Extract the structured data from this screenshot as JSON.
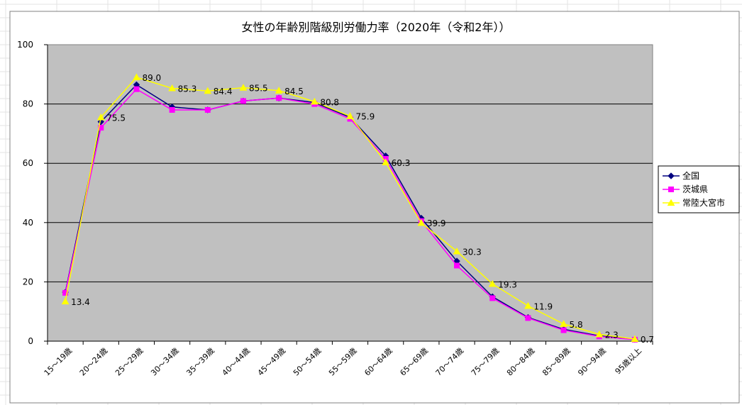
{
  "chart_data": {
    "type": "line",
    "title": "女性の年齢別階級別労働力率（2020年（令和2年））",
    "xlabel": "",
    "ylabel": "",
    "ylim": [
      0,
      100
    ],
    "yticks": [
      0,
      20,
      40,
      60,
      80,
      100
    ],
    "grid": true,
    "legend_position": "right",
    "plot_background": "#c0c0c0",
    "categories": [
      "15～19歳",
      "20～24歳",
      "25～29歳",
      "30～34歳",
      "35～39歳",
      "40～44歳",
      "45～49歳",
      "50～54歳",
      "55～59歳",
      "60～64歳",
      "65～69歳",
      "70～74歳",
      "75～79歳",
      "80～84歳",
      "85～89歳",
      "90～94歳",
      "95歳以上"
    ],
    "series": [
      {
        "name": "全国",
        "color": "#000080",
        "marker": "diamond",
        "values": [
          16.5,
          74.0,
          86.5,
          79.0,
          78.0,
          81.0,
          82.0,
          80.5,
          75.5,
          62.5,
          41.5,
          27.0,
          15.0,
          8.0,
          4.0,
          1.8,
          0.6
        ]
      },
      {
        "name": "茨城県",
        "color": "#ff00ff",
        "marker": "square",
        "values": [
          16.3,
          72.0,
          85.0,
          78.0,
          78.0,
          81.0,
          82.0,
          80.0,
          75.0,
          61.5,
          40.5,
          25.5,
          14.5,
          7.8,
          3.7,
          1.6,
          0.5
        ]
      },
      {
        "name": "常陸大宮市",
        "color": "#ffff00",
        "marker": "triangle",
        "values": [
          13.4,
          75.5,
          89.0,
          85.3,
          84.4,
          85.5,
          84.5,
          80.8,
          75.9,
          60.3,
          39.9,
          30.3,
          19.3,
          11.9,
          5.8,
          2.3,
          0.7
        ],
        "data_labels": [
          "13.4",
          "75.5",
          "89.0",
          "85.3",
          "84.4",
          "85.5",
          "84.5",
          "80.8",
          "75.9",
          "60.3",
          "39.9",
          "30.3",
          "19.3",
          "11.9",
          "5.8",
          "2.3",
          "0.7"
        ]
      }
    ]
  }
}
